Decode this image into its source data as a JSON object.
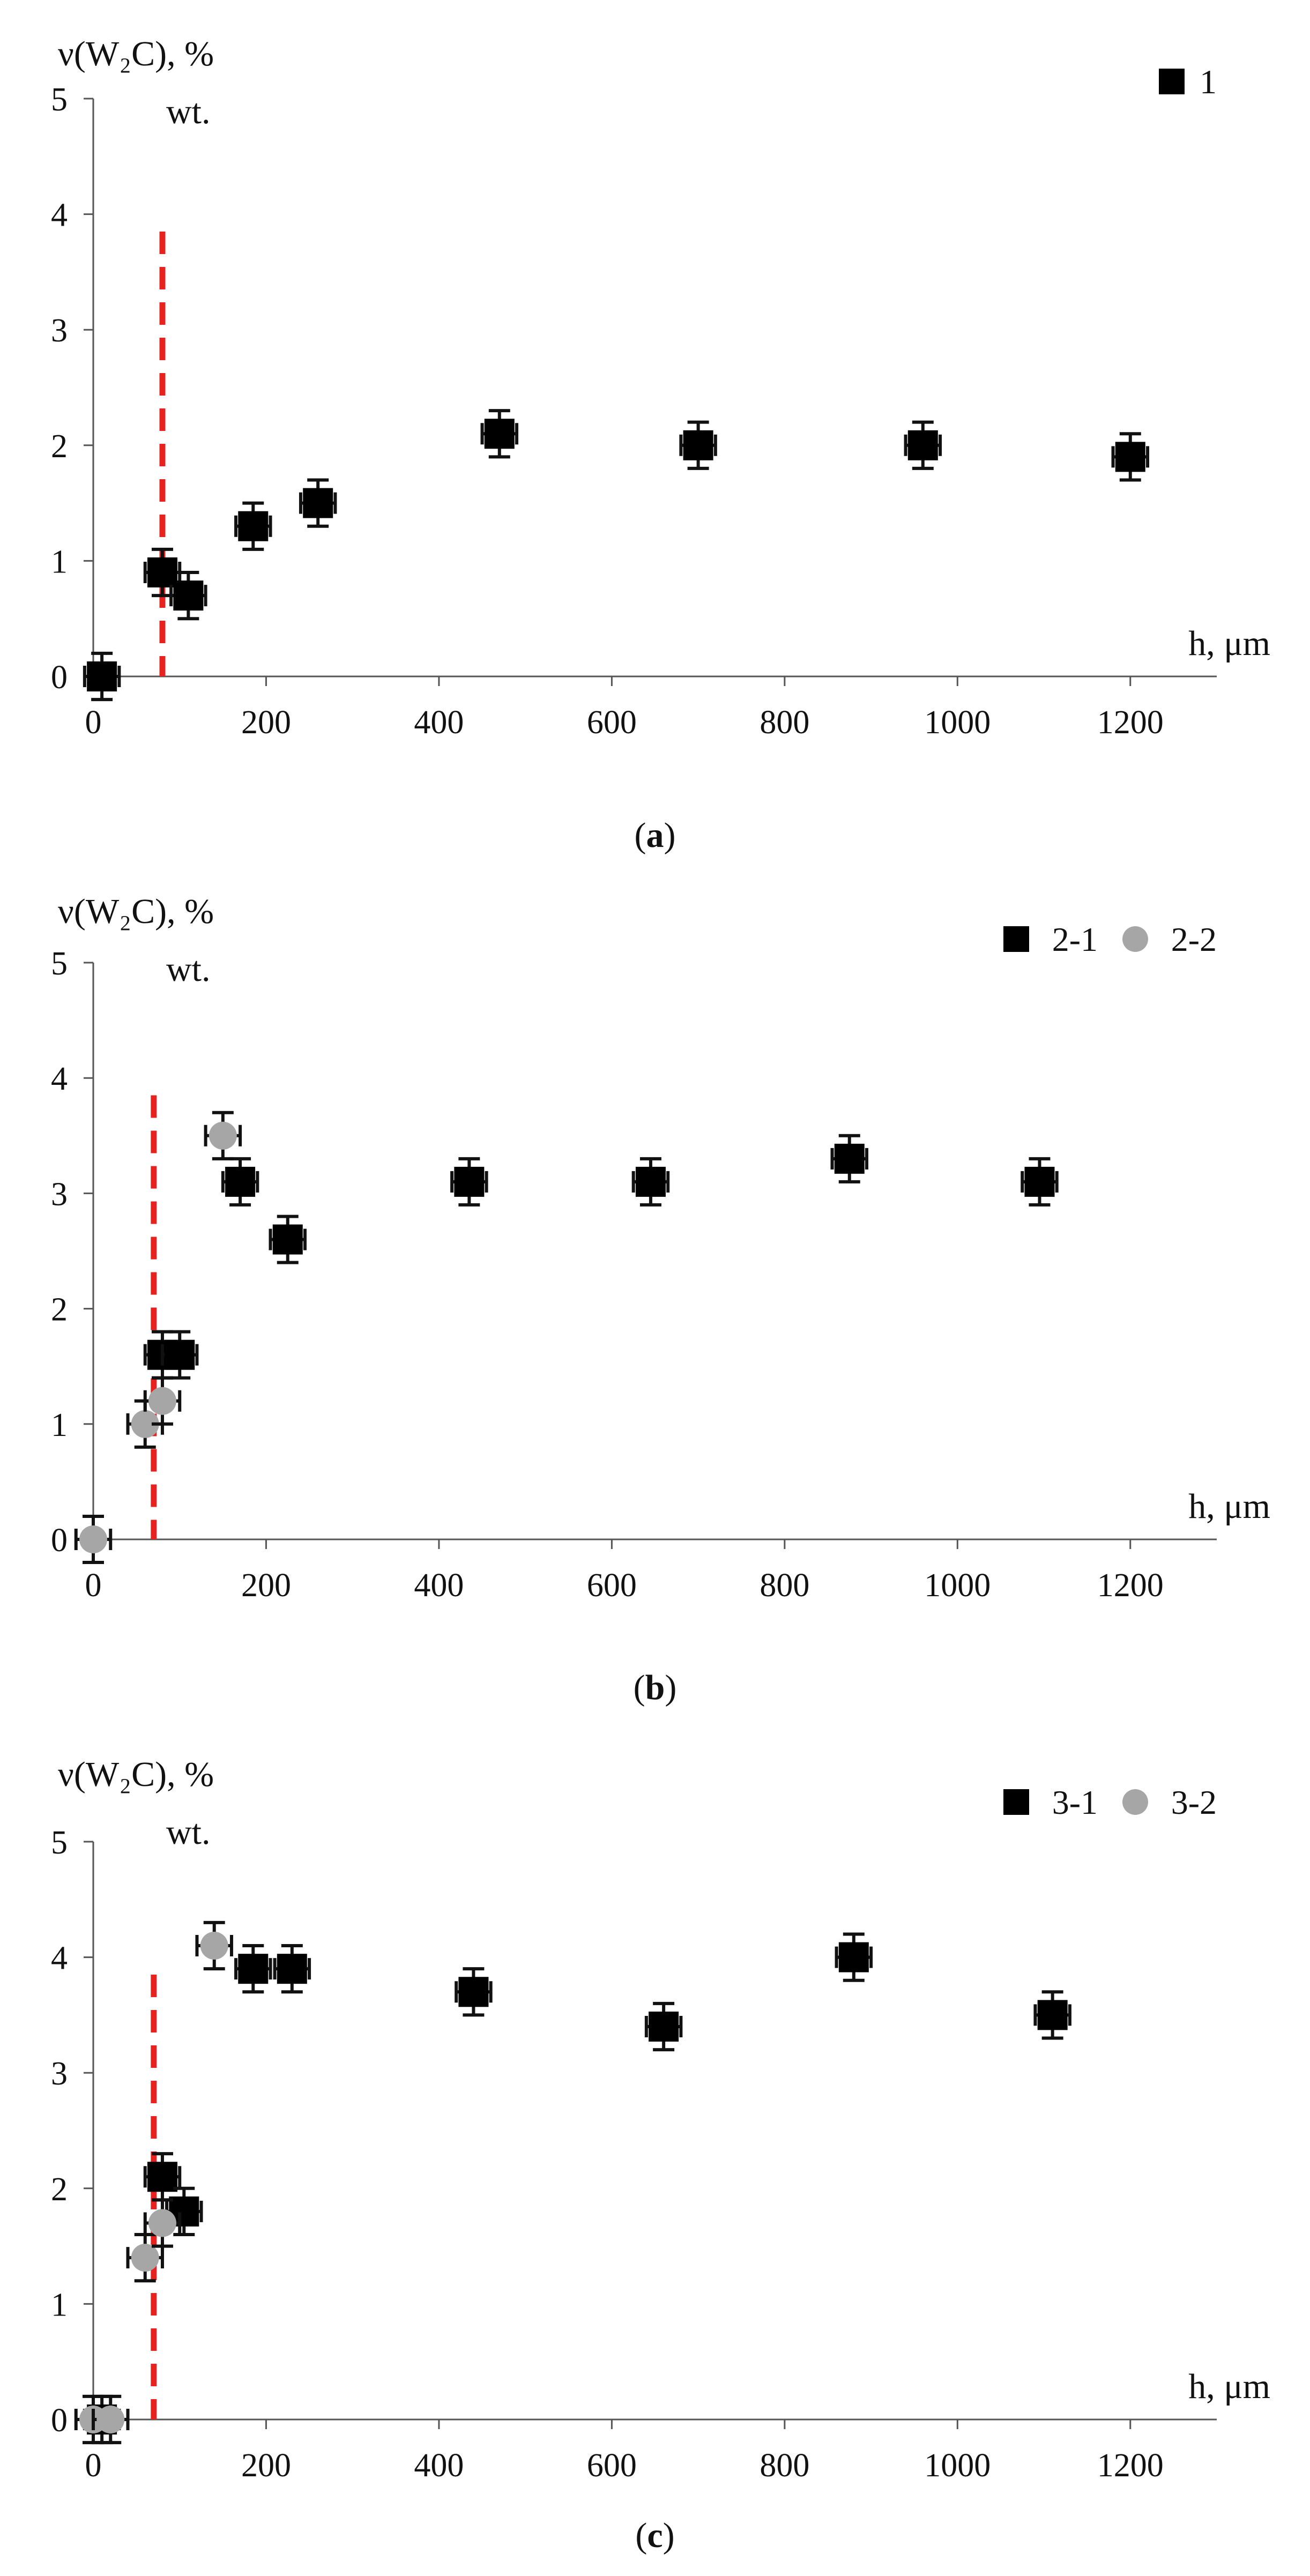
{
  "figure": {
    "panels_count": 3
  },
  "chart_data": [
    {
      "type": "scatter",
      "caption_letter": "a",
      "ylabel": "ν(W₂C), %",
      "ylabel_sub": "wt.",
      "xlabel": "h, μm",
      "xlim": [
        0,
        1300
      ],
      "ylim": [
        0,
        5
      ],
      "xticks": [
        0,
        200,
        400,
        600,
        800,
        1000,
        1200
      ],
      "yticks": [
        0,
        1,
        2,
        3,
        4,
        5
      ],
      "x_error": 20,
      "y_error": 0.2,
      "vline": {
        "x": 80,
        "ymax": 3.85,
        "color": "#e8231f"
      },
      "legend_position": "top-right",
      "series": [
        {
          "name": "1",
          "marker": "square",
          "color": "#000000",
          "points": [
            [
              10,
              0
            ],
            [
              80,
              0.9
            ],
            [
              110,
              0.7
            ],
            [
              185,
              1.3
            ],
            [
              260,
              1.5
            ],
            [
              470,
              2.1
            ],
            [
              700,
              2.0
            ],
            [
              960,
              2.0
            ],
            [
              1200,
              1.9
            ]
          ]
        }
      ]
    },
    {
      "type": "scatter",
      "caption_letter": "b",
      "ylabel": "ν(W₂C), %",
      "ylabel_sub": "wt.",
      "xlabel": "h, μm",
      "xlim": [
        0,
        1300
      ],
      "ylim": [
        0,
        5
      ],
      "xticks": [
        0,
        200,
        400,
        600,
        800,
        1000,
        1200
      ],
      "yticks": [
        0,
        1,
        2,
        3,
        4,
        5
      ],
      "x_error": 20,
      "y_error": 0.2,
      "vline": {
        "x": 70,
        "ymax": 3.85,
        "color": "#e8231f"
      },
      "legend_position": "top-right",
      "series": [
        {
          "name": "2-1",
          "marker": "square",
          "color": "#000000",
          "points": [
            [
              80,
              1.6
            ],
            [
              100,
              1.6
            ],
            [
              170,
              3.1
            ],
            [
              225,
              2.6
            ],
            [
              435,
              3.1
            ],
            [
              645,
              3.1
            ],
            [
              875,
              3.3
            ],
            [
              1095,
              3.1
            ]
          ]
        },
        {
          "name": "2-2",
          "marker": "circle",
          "color": "#a6a6a6",
          "points": [
            [
              0,
              0
            ],
            [
              60,
              1.0
            ],
            [
              80,
              1.2
            ],
            [
              150,
              3.5
            ]
          ]
        }
      ]
    },
    {
      "type": "scatter",
      "caption_letter": "c",
      "ylabel": "ν(W₂C), %",
      "ylabel_sub": "wt.",
      "xlabel": "h, μm",
      "xlim": [
        0,
        1300
      ],
      "ylim": [
        0,
        5
      ],
      "xticks": [
        0,
        200,
        400,
        600,
        800,
        1000,
        1200
      ],
      "yticks": [
        0,
        1,
        2,
        3,
        4,
        5
      ],
      "x_error": 20,
      "y_error": 0.2,
      "vline": {
        "x": 70,
        "ymax": 3.85,
        "color": "#e8231f"
      },
      "legend_position": "top-right",
      "series": [
        {
          "name": "3-1",
          "marker": "square",
          "color": "#000000",
          "points": [
            [
              10,
              0
            ],
            [
              80,
              2.1
            ],
            [
              105,
              1.8
            ],
            [
              185,
              3.9
            ],
            [
              230,
              3.9
            ],
            [
              440,
              3.7
            ],
            [
              660,
              3.4
            ],
            [
              880,
              4.0
            ],
            [
              1110,
              3.5
            ]
          ]
        },
        {
          "name": "3-2",
          "marker": "circle",
          "color": "#a6a6a6",
          "points": [
            [
              0,
              0
            ],
            [
              20,
              0
            ],
            [
              60,
              1.4
            ],
            [
              80,
              1.7
            ],
            [
              140,
              4.1
            ]
          ]
        }
      ]
    }
  ]
}
